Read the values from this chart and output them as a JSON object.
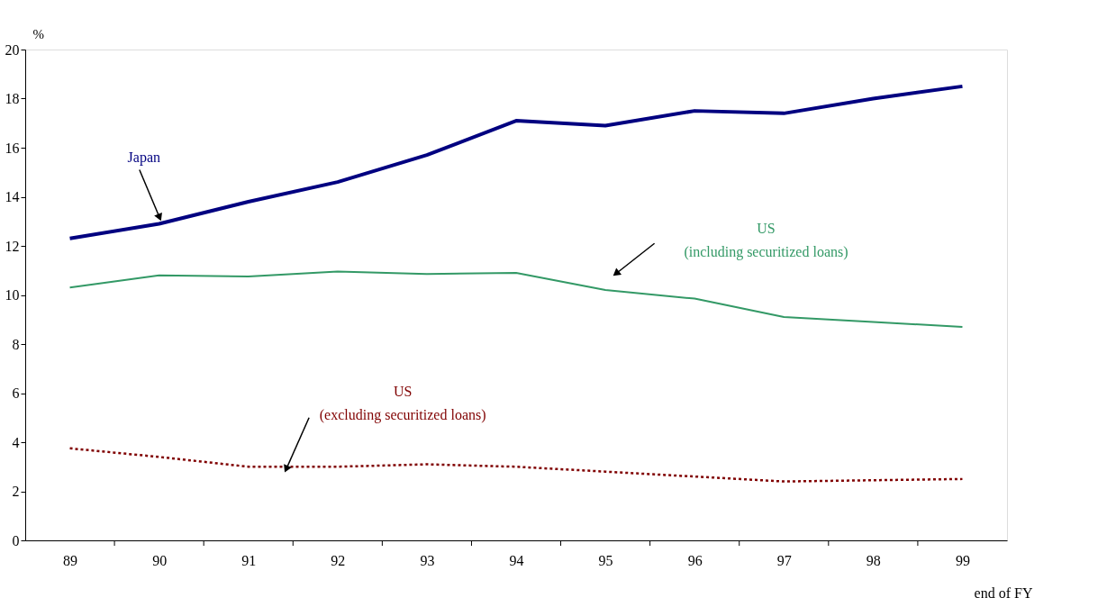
{
  "chart_data": {
    "type": "line",
    "categories": [
      "89",
      "90",
      "91",
      "92",
      "93",
      "94",
      "95",
      "96",
      "97",
      "98",
      "99"
    ],
    "series": [
      {
        "name": "Japan",
        "color": "#000080",
        "values": [
          12.3,
          12.9,
          13.8,
          14.6,
          15.7,
          17.1,
          16.9,
          17.5,
          17.4,
          18.0,
          18.5
        ],
        "line_style": "solid"
      },
      {
        "name": "US\n(including securitized loans)",
        "color": "#339966",
        "values": [
          10.3,
          10.8,
          10.75,
          10.95,
          10.85,
          10.9,
          10.2,
          9.85,
          9.1,
          8.9,
          8.7
        ],
        "line_style": "solid"
      },
      {
        "name": "US\n(excluding securitized loans)",
        "color": "#800000",
        "values": [
          3.75,
          3.4,
          3.0,
          3.0,
          3.1,
          3.0,
          2.8,
          2.6,
          2.4,
          2.45,
          2.5
        ],
        "line_style": "dotted"
      }
    ],
    "ylabel": "%",
    "xlabel": "end of FY",
    "ylim": [
      0,
      20
    ],
    "yticks": [
      0,
      2,
      4,
      6,
      8,
      10,
      12,
      14,
      16,
      18,
      20
    ],
    "grid": false,
    "legend": false,
    "marker": "none"
  }
}
